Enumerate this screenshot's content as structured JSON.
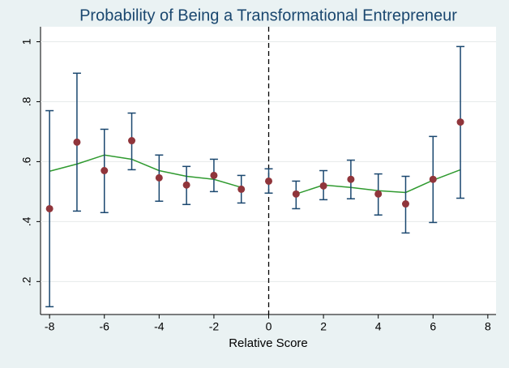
{
  "chart_data": {
    "type": "scatter",
    "title": "Probability of Being a Transformational Entrepreneur",
    "x_label": "Relative Score",
    "x": [
      -8,
      -7,
      -6,
      -5,
      -4,
      -3,
      -2,
      -1,
      0,
      1,
      2,
      3,
      4,
      5,
      6,
      7
    ],
    "points": {
      "color": "#90353b",
      "values": [
        0.443,
        0.665,
        0.57,
        0.67,
        0.546,
        0.522,
        0.554,
        0.508,
        0.535,
        0.492,
        0.519,
        0.541,
        0.492,
        0.459,
        0.541,
        0.732
      ],
      "lower": [
        0.116,
        0.435,
        0.43,
        0.573,
        0.468,
        0.457,
        0.5,
        0.462,
        0.495,
        0.443,
        0.473,
        0.476,
        0.422,
        0.362,
        0.397,
        0.478
      ],
      "upper": [
        0.77,
        0.895,
        0.708,
        0.762,
        0.622,
        0.584,
        0.608,
        0.554,
        0.576,
        0.535,
        0.57,
        0.605,
        0.559,
        0.551,
        0.684,
        0.984
      ]
    },
    "error_bar_color": "#1a476f",
    "fit": {
      "color": "#2f9a2f",
      "values": [
        0.568,
        0.592,
        0.622,
        0.608,
        0.57,
        0.551,
        0.541,
        0.514,
        null,
        0.492,
        0.522,
        0.514,
        0.503,
        0.497,
        0.538,
        0.573
      ]
    },
    "xline": 0,
    "xlim": [
      -8.33,
      8.3
    ],
    "ylim": [
      0.09,
      1.05
    ],
    "xticks": [
      -8,
      -6,
      -4,
      -2,
      0,
      2,
      4,
      6,
      8
    ],
    "yticks": [
      {
        "value": 0.2,
        "label": ".2"
      },
      {
        "value": 0.4,
        "label": ".4"
      },
      {
        "value": 0.6,
        "label": ".6"
      },
      {
        "value": 0.8,
        "label": ".8"
      },
      1
    ],
    "grid": true
  }
}
